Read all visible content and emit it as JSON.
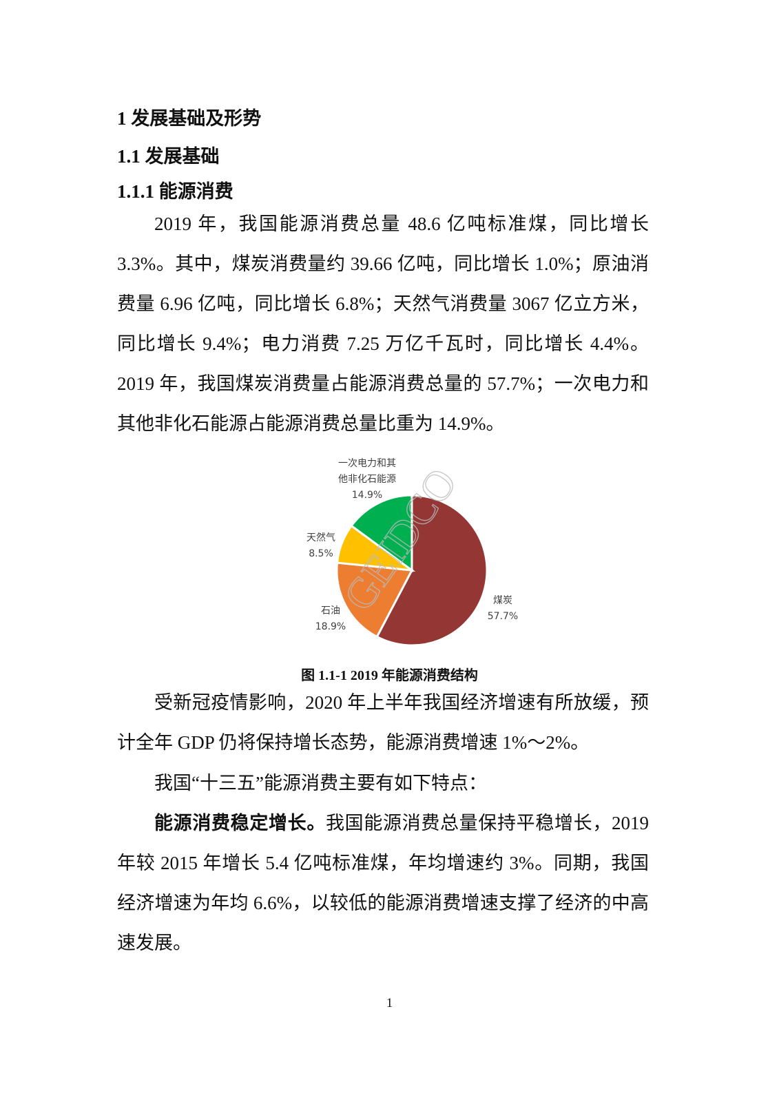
{
  "headings": {
    "h1": "1  发展基础及形势",
    "h2": "1.1  发展基础",
    "h3": "1.1.1  能源消费"
  },
  "paragraphs": {
    "p1": "2019 年，我国能源消费总量 48.6 亿吨标准煤，同比增长 3.3%。其中，煤炭消费量约 39.66 亿吨，同比增长 1.0%；原油消费量 6.96 亿吨，同比增长 6.8%；天然气消费量 3067 亿立方米，同比增长 9.4%；电力消费 7.25 万亿千瓦时，同比增长 4.4%。2019 年，我国煤炭消费量占能源消费总量的 57.7%；一次电力和其他非化石能源占能源消费总量比重为 14.9%。",
    "p2": "受新冠疫情影响，2020 年上半年我国经济增速有所放缓，预计全年 GDP 仍将保持增长态势，能源消费增速 1%～2%。",
    "p3": "我国“十三五”能源消费主要有如下特点：",
    "p4_lead": "能源消费稳定增长。",
    "p4": "我国能源消费总量保持平稳增长，2019 年较 2015 年增长 5.4 亿吨标准煤，年均增速约 3%。同期，我国经济增速为年均 6.6%，以较低的能源消费增速支撑了经济的中高速发展。"
  },
  "chart_data": {
    "type": "pie",
    "title": "",
    "slices": [
      {
        "name": "煤炭",
        "value": 57.7,
        "label": "57.7%",
        "color": "#943634"
      },
      {
        "name": "石油",
        "value": 18.9,
        "label": "18.9%",
        "color": "#ED7D31"
      },
      {
        "name": "天然气",
        "value": 8.5,
        "label": "8.5%",
        "color": "#FFC000"
      },
      {
        "name": "一次电力和其他非化石能源",
        "name_lines": [
          "一次电力和其",
          "他非化石能源"
        ],
        "value": 14.9,
        "label": "14.9%",
        "color": "#00B050"
      }
    ],
    "start": "top",
    "direction": "clockwise"
  },
  "watermark": "GEIDCO",
  "caption": "图 1.1-1 2019 年能源消费结构",
  "page_number": "1"
}
